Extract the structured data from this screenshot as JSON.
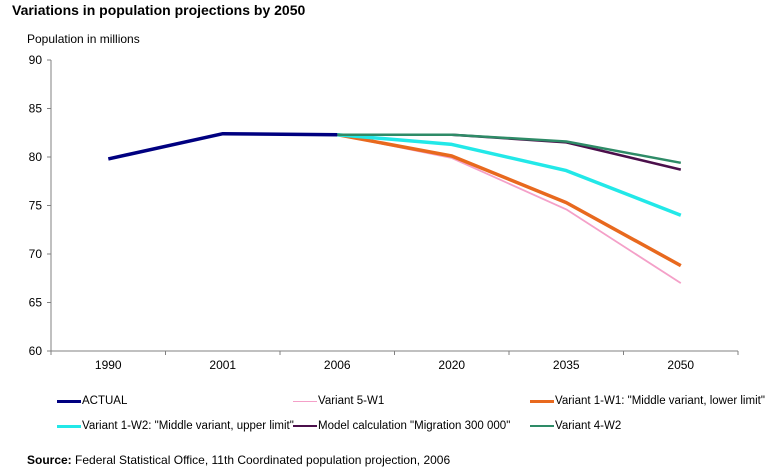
{
  "chart_data": {
    "type": "line",
    "title": "Variations in population projections by 2050",
    "ylabel": "Population in millions",
    "xlabel": "",
    "categories": [
      "1990",
      "2001",
      "2006",
      "2020",
      "2035",
      "2050"
    ],
    "ylim": [
      60,
      90
    ],
    "yticks": [
      60,
      65,
      70,
      75,
      80,
      85,
      90
    ],
    "grid": false,
    "legend_position": "bottom",
    "series": [
      {
        "name": "ACTUAL",
        "color": "#000080",
        "width": "thick",
        "values": [
          79.8,
          82.4,
          82.3,
          null,
          null,
          null
        ]
      },
      {
        "name": "Variant 5-W1",
        "color": "#f4a0c8",
        "width": "thin",
        "values": [
          null,
          null,
          82.3,
          79.9,
          74.6,
          67.0
        ]
      },
      {
        "name": "Variant 1-W1: \"Middle variant, lower limit\"",
        "color": "#e8691e",
        "width": "thick",
        "values": [
          null,
          null,
          82.3,
          80.1,
          75.3,
          68.8
        ]
      },
      {
        "name": "Variant 1-W2: \"Middle variant, upper limit\"",
        "color": "#22e8e8",
        "width": "thick",
        "values": [
          null,
          null,
          82.3,
          81.3,
          78.6,
          74.0
        ]
      },
      {
        "name": "Model calculation \"Migration 300 000\"",
        "color": "#4b0f4b",
        "width": "medium",
        "values": [
          null,
          null,
          82.3,
          82.3,
          81.5,
          78.7
        ]
      },
      {
        "name": "Variant 4-W2",
        "color": "#2e8b67",
        "width": "medium",
        "values": [
          null,
          null,
          82.3,
          82.3,
          81.6,
          79.4
        ]
      }
    ]
  },
  "source": {
    "label": "Source:",
    "text": " Federal Statistical Office, 11th Coordinated population projection, 2006"
  }
}
